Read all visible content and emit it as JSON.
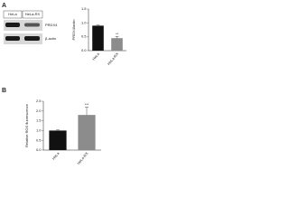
{
  "blot": {
    "panel_label": "A",
    "lanes": [
      "HeLa",
      "HeLa-RX"
    ],
    "bands": [
      "PRDX4",
      "β-actin"
    ]
  },
  "chart_data": [
    {
      "type": "bar",
      "ylabel": "PRDX4/actin",
      "categories": [
        "HeLa",
        "HeLa-RX"
      ],
      "values": [
        0.9,
        0.45
      ],
      "errors": [
        0.02,
        0.06
      ],
      "colors": [
        "#111111",
        "#8c8c8c"
      ],
      "annotations": [
        null,
        "**"
      ],
      "ylim": [
        0,
        1.5
      ],
      "yticks": [
        {
          "value": 0,
          "label": "0.0"
        },
        0.5,
        {
          "value": 1,
          "label": "1.0"
        },
        1.5
      ]
    },
    {
      "type": "bar",
      "panel_label": "B",
      "ylabel": "Relative ROS fluorescence",
      "categories": [
        "HeLa",
        "HeLa-RX"
      ],
      "values": [
        1.0,
        1.8
      ],
      "errors": [
        0.03,
        0.4
      ],
      "colors": [
        "#111111",
        "#8c8c8c"
      ],
      "annotations": [
        null,
        "***"
      ],
      "ylim": [
        0,
        2.5
      ],
      "yticks": [
        {
          "value": 0,
          "label": "0.0"
        },
        0.5,
        {
          "value": 1,
          "label": "1.0"
        },
        1.5,
        {
          "value": 2,
          "label": "2.0"
        },
        2.5
      ]
    }
  ]
}
